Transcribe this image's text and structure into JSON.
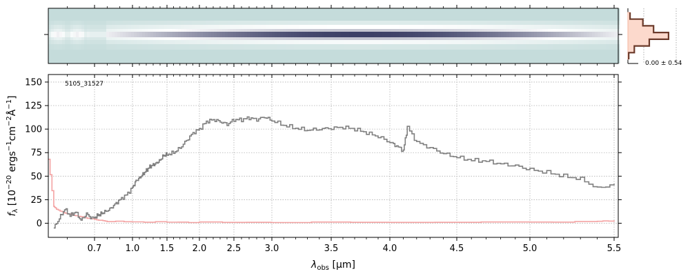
{
  "chart_data": [
    {
      "type": "heatmap",
      "panel": "2d-spectrum",
      "colormap": [
        "#c5dcdb",
        "#ffffff",
        "#3c3f66"
      ],
      "trace_row": 0.5,
      "note_values": "brightest along the central row from about 0.85 to 5.4 micron"
    },
    {
      "type": "line",
      "panel": "profile",
      "label": "0.00 ± 0.54",
      "series": [
        {
          "name": "profile",
          "color": "#6b3a2a",
          "x": [
            -3,
            -2,
            -1,
            0,
            1,
            2,
            3
          ],
          "values": [
            0.05,
            0.35,
            0.6,
            0.95,
            0.5,
            0.15,
            0.02
          ]
        }
      ]
    },
    {
      "type": "line",
      "panel": "1d-spectrum",
      "id_label": "5105_31527",
      "xlabel": "λobs [μm]",
      "ylabel": "fλ [10−20 ergs−1cm−2Å−1]",
      "xscale": "custom-stretch",
      "xlim": [
        0.53,
        5.52
      ],
      "ylim": [
        -15,
        158
      ],
      "grid": true,
      "xticks": [
        "0.7",
        "1.0",
        "1.5",
        "2.0",
        "2.5",
        "3.0",
        "3.5",
        "4.0",
        "4.5",
        "5.0",
        "5.5"
      ],
      "xtick_values": [
        0.7,
        1.0,
        1.5,
        2.0,
        2.5,
        3.0,
        3.5,
        4.0,
        4.5,
        5.0,
        5.5
      ],
      "yticks": [
        "0",
        "25",
        "50",
        "75",
        "100",
        "125",
        "150"
      ],
      "ytick_values": [
        0,
        25,
        50,
        75,
        100,
        125,
        150
      ],
      "series": [
        {
          "name": "flux",
          "color": "#808080",
          "x": [
            0.55,
            0.57,
            0.59,
            0.61,
            0.63,
            0.65,
            0.67,
            0.69,
            0.72,
            0.75,
            0.78,
            0.82,
            0.86,
            0.9,
            0.95,
            1.0,
            1.05,
            1.1,
            1.15,
            1.2,
            1.25,
            1.3,
            1.35,
            1.4,
            1.45,
            1.5,
            1.6,
            1.7,
            1.8,
            1.9,
            2.0,
            2.1,
            2.2,
            2.3,
            2.4,
            2.5,
            2.6,
            2.7,
            2.8,
            2.9,
            3.0,
            3.1,
            3.2,
            3.3,
            3.4,
            3.5,
            3.6,
            3.7,
            3.8,
            3.9,
            4.0,
            4.05,
            4.1,
            4.13,
            4.2,
            4.3,
            4.4,
            4.5,
            4.6,
            4.7,
            4.8,
            4.9,
            5.0,
            5.1,
            5.2,
            5.3,
            5.4,
            5.5
          ],
          "values": [
            -5,
            5,
            15,
            8,
            12,
            3,
            10,
            5,
            8,
            10,
            12,
            15,
            20,
            25,
            30,
            38,
            45,
            48,
            52,
            56,
            60,
            62,
            64,
            67,
            72,
            73,
            75,
            80,
            88,
            96,
            100,
            108,
            110,
            108,
            105,
            110,
            110,
            112,
            110,
            113,
            109,
            104,
            101,
            99,
            100,
            101,
            102,
            100,
            96,
            92,
            86,
            82,
            77,
            102,
            86,
            80,
            74,
            70,
            67,
            66,
            63,
            61,
            57,
            54,
            50,
            47,
            37,
            42
          ]
        },
        {
          "name": "uncertainty",
          "color": "#f4a3a3",
          "x": [
            0.53,
            0.55,
            0.56,
            0.58,
            0.6,
            0.63,
            0.66,
            0.7,
            0.75,
            0.8,
            1.0,
            1.5,
            2.0,
            3.0,
            4.0,
            5.0,
            5.4,
            5.5
          ],
          "values": [
            68,
            18,
            15,
            12,
            10,
            8,
            6,
            4,
            3,
            2,
            1.5,
            1.2,
            1,
            1,
            1,
            1.2,
            2,
            3
          ]
        }
      ]
    }
  ]
}
